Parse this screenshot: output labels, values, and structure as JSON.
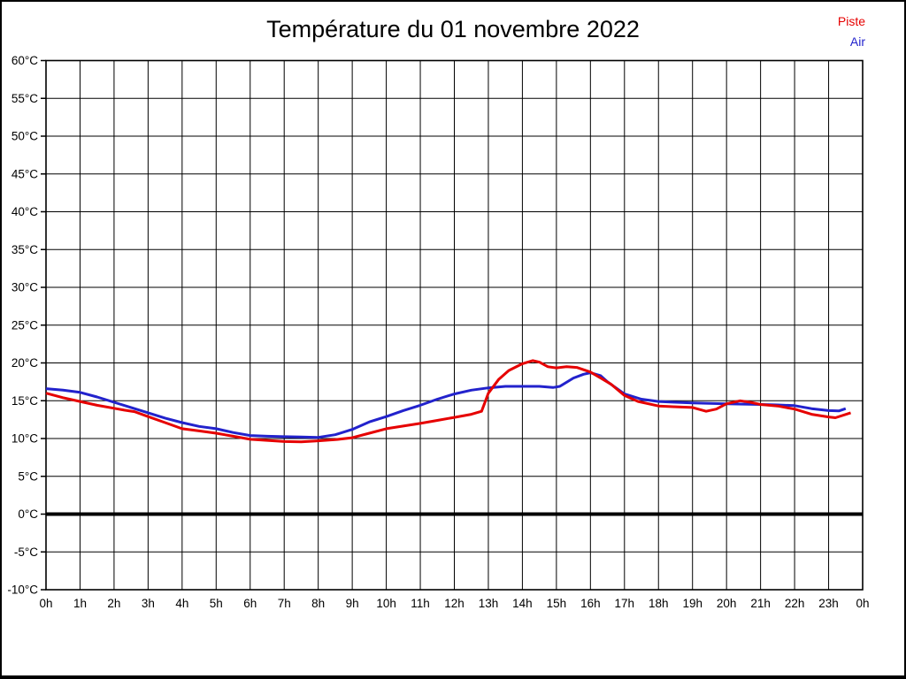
{
  "page": {
    "title": "Température du 01 novembre 2022"
  },
  "legend": {
    "piste_label": "Piste",
    "air_label": "Air"
  },
  "colors": {
    "piste": "#e60000",
    "air": "#2222cc",
    "grid": "#000000",
    "zero_line": "#000000",
    "background": "#ffffff",
    "text": "#000000"
  },
  "chart_data": {
    "type": "line",
    "title": "Température du 01 novembre 2022",
    "xlabel": "",
    "ylabel": "°C",
    "x_unit": "hours",
    "xlim": [
      0,
      24
    ],
    "ylim": [
      -10,
      60
    ],
    "y_tick_step": 5,
    "grid": true,
    "zero_line_at": 0,
    "legend_position": "top-right",
    "x_ticks": [
      0,
      1,
      2,
      3,
      4,
      5,
      6,
      7,
      8,
      9,
      10,
      11,
      12,
      13,
      14,
      15,
      16,
      17,
      18,
      19,
      20,
      21,
      22,
      23,
      24
    ],
    "x_tick_labels": [
      "0h",
      "1h",
      "2h",
      "3h",
      "4h",
      "5h",
      "6h",
      "7h",
      "8h",
      "9h",
      "10h",
      "11h",
      "12h",
      "13h",
      "14h",
      "15h",
      "16h",
      "17h",
      "18h",
      "19h",
      "20h",
      "21h",
      "22h",
      "23h",
      "0h"
    ],
    "y_ticks": [
      60,
      55,
      50,
      45,
      40,
      35,
      30,
      25,
      20,
      15,
      10,
      5,
      0,
      -5,
      -10
    ],
    "y_tick_labels": [
      "60°C",
      "55°C",
      "50°C",
      "45°C",
      "40°C",
      "35°C",
      "30°C",
      "25°C",
      "20°C",
      "15°C",
      "10°C",
      "5°C",
      "0°C",
      "-5°C",
      "-10°C"
    ],
    "series": [
      {
        "name": "Piste",
        "color": "#e60000",
        "points": [
          [
            0,
            16.0
          ],
          [
            0.5,
            15.4
          ],
          [
            1,
            14.9
          ],
          [
            1.5,
            14.4
          ],
          [
            2,
            14.0
          ],
          [
            2.3,
            13.75
          ],
          [
            2.6,
            13.55
          ],
          [
            3,
            12.9
          ],
          [
            3.5,
            12.1
          ],
          [
            4,
            11.3
          ],
          [
            4.5,
            11.0
          ],
          [
            5,
            10.7
          ],
          [
            5.5,
            10.3
          ],
          [
            6,
            9.9
          ],
          [
            6.5,
            9.75
          ],
          [
            7,
            9.6
          ],
          [
            7.5,
            9.55
          ],
          [
            8,
            9.7
          ],
          [
            8.5,
            9.85
          ],
          [
            9,
            10.1
          ],
          [
            9.5,
            10.7
          ],
          [
            10,
            11.3
          ],
          [
            10.5,
            11.65
          ],
          [
            11,
            12.0
          ],
          [
            11.5,
            12.4
          ],
          [
            12,
            12.8
          ],
          [
            12.5,
            13.2
          ],
          [
            12.8,
            13.6
          ],
          [
            13,
            16.0
          ],
          [
            13.3,
            17.8
          ],
          [
            13.6,
            19.0
          ],
          [
            14,
            19.9
          ],
          [
            14.3,
            20.3
          ],
          [
            14.5,
            20.1
          ],
          [
            14.75,
            19.5
          ],
          [
            15,
            19.35
          ],
          [
            15.3,
            19.5
          ],
          [
            15.6,
            19.4
          ],
          [
            16,
            18.8
          ],
          [
            16.3,
            18.0
          ],
          [
            16.6,
            17.2
          ],
          [
            17,
            15.7
          ],
          [
            17.4,
            14.9
          ],
          [
            18,
            14.3
          ],
          [
            18.5,
            14.2
          ],
          [
            19,
            14.1
          ],
          [
            19.4,
            13.6
          ],
          [
            19.7,
            13.9
          ],
          [
            20,
            14.6
          ],
          [
            20.4,
            15.0
          ],
          [
            20.7,
            14.8
          ],
          [
            21,
            14.5
          ],
          [
            21.5,
            14.3
          ],
          [
            22,
            13.9
          ],
          [
            22.5,
            13.2
          ],
          [
            23,
            12.85
          ],
          [
            23.2,
            12.75
          ],
          [
            23.65,
            13.4
          ]
        ]
      },
      {
        "name": "Air",
        "color": "#2222cc",
        "points": [
          [
            0,
            16.6
          ],
          [
            0.5,
            16.4
          ],
          [
            1,
            16.1
          ],
          [
            1.5,
            15.5
          ],
          [
            2,
            14.8
          ],
          [
            2.5,
            14.1
          ],
          [
            3,
            13.4
          ],
          [
            3.5,
            12.7
          ],
          [
            4,
            12.1
          ],
          [
            4.5,
            11.6
          ],
          [
            5,
            11.3
          ],
          [
            5.5,
            10.8
          ],
          [
            6,
            10.4
          ],
          [
            6.5,
            10.3
          ],
          [
            7,
            10.25
          ],
          [
            7.5,
            10.2
          ],
          [
            8,
            10.15
          ],
          [
            8.5,
            10.5
          ],
          [
            9,
            11.2
          ],
          [
            9.5,
            12.2
          ],
          [
            10,
            12.9
          ],
          [
            10.5,
            13.7
          ],
          [
            11,
            14.4
          ],
          [
            11.5,
            15.2
          ],
          [
            12,
            15.9
          ],
          [
            12.5,
            16.4
          ],
          [
            13,
            16.7
          ],
          [
            13.5,
            16.9
          ],
          [
            14,
            16.9
          ],
          [
            14.5,
            16.9
          ],
          [
            14.9,
            16.75
          ],
          [
            15.1,
            16.9
          ],
          [
            15.5,
            18.0
          ],
          [
            15.8,
            18.5
          ],
          [
            16,
            18.7
          ],
          [
            16.3,
            18.3
          ],
          [
            16.5,
            17.5
          ],
          [
            16.75,
            16.7
          ],
          [
            17,
            15.9
          ],
          [
            17.5,
            15.2
          ],
          [
            18,
            14.9
          ],
          [
            18.5,
            14.8
          ],
          [
            19,
            14.7
          ],
          [
            19.5,
            14.65
          ],
          [
            20,
            14.6
          ],
          [
            20.5,
            14.55
          ],
          [
            21,
            14.5
          ],
          [
            21.5,
            14.45
          ],
          [
            22,
            14.35
          ],
          [
            22.5,
            13.95
          ],
          [
            23,
            13.7
          ],
          [
            23.3,
            13.65
          ],
          [
            23.5,
            13.95
          ]
        ]
      }
    ]
  }
}
